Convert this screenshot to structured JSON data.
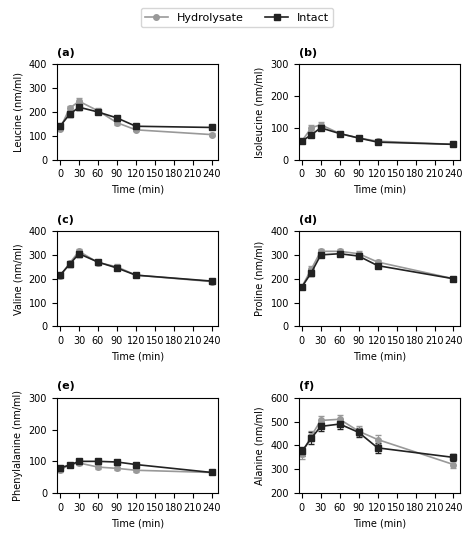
{
  "chart_data": [
    {
      "type": "line",
      "title": "(a)",
      "xlabel": "Time (min)",
      "ylabel": "Leucine (nm/ml)",
      "x": [
        0,
        15,
        30,
        60,
        90,
        120,
        240
      ],
      "xlim": [
        -5,
        250
      ],
      "xticks": [
        0,
        30,
        60,
        90,
        120,
        150,
        180,
        210,
        240
      ],
      "ylim": [
        0,
        400
      ],
      "yticks": [
        0,
        100,
        200,
        300,
        400
      ],
      "legend": "upper center",
      "series": [
        {
          "name": "Hydrolysate",
          "color": "#999999",
          "marker": "circle",
          "values": [
            130,
            215,
            245,
            205,
            155,
            125,
            105
          ],
          "errors": [
            5,
            10,
            12,
            10,
            8,
            5,
            5
          ]
        },
        {
          "name": "Intact",
          "color": "#222222",
          "marker": "square",
          "values": [
            140,
            190,
            220,
            200,
            175,
            140,
            135
          ],
          "errors": [
            5,
            12,
            10,
            8,
            8,
            6,
            6
          ]
        }
      ]
    },
    {
      "type": "line",
      "title": "(b)",
      "xlabel": "Time (min)",
      "ylabel": "Isoleucine (nm/ml)",
      "x": [
        0,
        15,
        30,
        60,
        90,
        120,
        240
      ],
      "xlim": [
        -5,
        250
      ],
      "xticks": [
        0,
        30,
        60,
        90,
        120,
        150,
        180,
        210,
        240
      ],
      "ylim": [
        0,
        300
      ],
      "yticks": [
        0,
        100,
        200,
        300
      ],
      "series": [
        {
          "name": "Hydrolysate",
          "color": "#999999",
          "marker": "circle",
          "values": [
            58,
            100,
            110,
            82,
            68,
            58,
            48
          ],
          "errors": [
            3,
            8,
            8,
            5,
            4,
            3,
            3
          ]
        },
        {
          "name": "Intact",
          "color": "#222222",
          "marker": "square",
          "values": [
            58,
            78,
            100,
            82,
            68,
            55,
            48
          ],
          "errors": [
            3,
            5,
            5,
            4,
            4,
            3,
            3
          ]
        }
      ]
    },
    {
      "type": "line",
      "title": "(c)",
      "xlabel": "Time (min)",
      "ylabel": "Valine (nm/ml)",
      "x": [
        0,
        15,
        30,
        60,
        90,
        120,
        240
      ],
      "xlim": [
        -5,
        250
      ],
      "xticks": [
        0,
        30,
        60,
        90,
        120,
        150,
        180,
        210,
        240
      ],
      "ylim": [
        0,
        400
      ],
      "yticks": [
        0,
        100,
        200,
        300,
        400
      ],
      "series": [
        {
          "name": "Hydrolysate",
          "color": "#999999",
          "marker": "circle",
          "values": [
            210,
            265,
            315,
            268,
            250,
            215,
            188
          ],
          "errors": [
            8,
            10,
            10,
            10,
            10,
            8,
            8
          ]
        },
        {
          "name": "Intact",
          "color": "#222222",
          "marker": "square",
          "values": [
            215,
            260,
            305,
            270,
            245,
            215,
            190
          ],
          "errors": [
            8,
            12,
            12,
            10,
            10,
            8,
            8
          ]
        }
      ]
    },
    {
      "type": "line",
      "title": "(d)",
      "xlabel": "Time (min)",
      "ylabel": "Proline (nm/ml)",
      "x": [
        0,
        15,
        30,
        60,
        90,
        120,
        240
      ],
      "xlim": [
        -5,
        250
      ],
      "xticks": [
        0,
        30,
        60,
        90,
        120,
        150,
        180,
        210,
        240
      ],
      "ylim": [
        0,
        400
      ],
      "yticks": [
        0,
        100,
        200,
        300,
        400
      ],
      "series": [
        {
          "name": "Hydrolysate",
          "color": "#999999",
          "marker": "circle",
          "values": [
            165,
            240,
            315,
            315,
            305,
            270,
            200
          ],
          "errors": [
            8,
            12,
            10,
            10,
            10,
            10,
            8
          ]
        },
        {
          "name": "Intact",
          "color": "#222222",
          "marker": "square",
          "values": [
            165,
            225,
            300,
            305,
            295,
            255,
            200
          ],
          "errors": [
            8,
            15,
            10,
            10,
            10,
            10,
            8
          ]
        }
      ]
    },
    {
      "type": "line",
      "title": "(e)",
      "xlabel": "Time (min)",
      "ylabel": "Phenylalanine (nm/ml)",
      "x": [
        0,
        15,
        30,
        60,
        90,
        120,
        240
      ],
      "xlim": [
        -5,
        250
      ],
      "xticks": [
        0,
        30,
        60,
        90,
        120,
        150,
        180,
        210,
        240
      ],
      "ylim": [
        0,
        300
      ],
      "yticks": [
        0,
        100,
        200,
        300
      ],
      "series": [
        {
          "name": "Hydrolysate",
          "color": "#999999",
          "marker": "circle",
          "values": [
            72,
            90,
            95,
            82,
            78,
            72,
            65
          ],
          "errors": [
            4,
            5,
            6,
            5,
            5,
            4,
            4
          ]
        },
        {
          "name": "Intact",
          "color": "#222222",
          "marker": "square",
          "values": [
            80,
            88,
            100,
            100,
            98,
            90,
            65
          ],
          "errors": [
            4,
            5,
            6,
            6,
            5,
            4,
            4
          ]
        }
      ]
    },
    {
      "type": "line",
      "title": "(f)",
      "xlabel": "Time (min)",
      "ylabel": "Alanine (nm/ml)",
      "x": [
        0,
        15,
        30,
        60,
        90,
        120,
        240
      ],
      "xlim": [
        -5,
        250
      ],
      "xticks": [
        0,
        30,
        60,
        90,
        120,
        150,
        180,
        210,
        240
      ],
      "ylim": [
        200,
        600
      ],
      "yticks": [
        200,
        300,
        400,
        500,
        600
      ],
      "series": [
        {
          "name": "Hydrolysate",
          "color": "#999999",
          "marker": "circle",
          "values": [
            365,
            440,
            505,
            510,
            460,
            425,
            320
          ],
          "errors": [
            20,
            20,
            20,
            20,
            20,
            20,
            15
          ]
        },
        {
          "name": "Intact",
          "color": "#222222",
          "marker": "square",
          "values": [
            375,
            430,
            480,
            490,
            455,
            390,
            350
          ],
          "errors": [
            20,
            25,
            20,
            20,
            20,
            20,
            15
          ]
        }
      ]
    }
  ]
}
